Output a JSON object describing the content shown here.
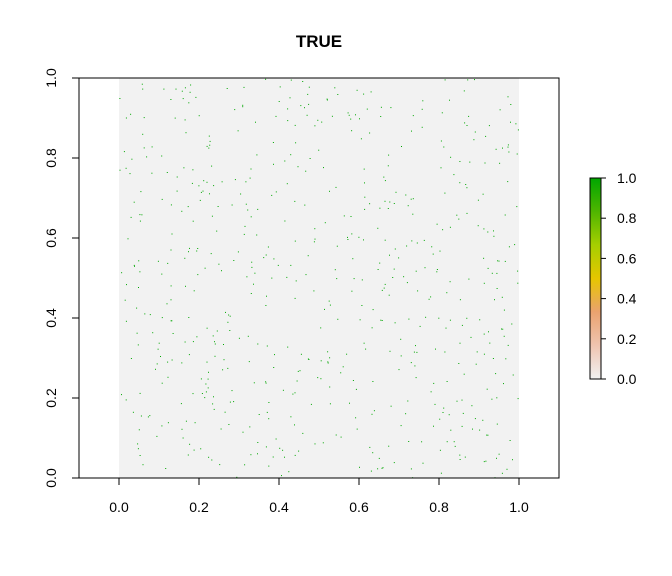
{
  "chart_data": {
    "type": "scatter",
    "title": "TRUE",
    "xlabel": "",
    "ylabel": "",
    "xlim": [
      -0.1,
      1.1
    ],
    "ylim": [
      0.0,
      1.0
    ],
    "x_ticks": [
      "0.0",
      "0.2",
      "0.4",
      "0.6",
      "0.8",
      "1.0"
    ],
    "y_ticks": [
      "0.0",
      "0.2",
      "0.4",
      "0.6",
      "0.8",
      "1.0"
    ],
    "grid": false,
    "raster_extent": {
      "x": [
        0.0,
        1.0
      ],
      "y": [
        0.0,
        1.0
      ]
    },
    "background_value": 0.0,
    "point_value": 1.0,
    "point_count_estimate": 620,
    "colorbar": {
      "placement": "right",
      "range": [
        0.0,
        1.0
      ],
      "ticks": [
        "0.0",
        "0.2",
        "0.4",
        "0.6",
        "0.8",
        "1.0"
      ],
      "colors": [
        "#f2f2f2",
        "#efc4b0",
        "#eaa26f",
        "#e6c600",
        "#a6cf00",
        "#4fb500",
        "#00a600"
      ]
    },
    "colors": {
      "background_cell": "#f2f2f2",
      "point": "#00a600",
      "axis": "#000000"
    }
  }
}
